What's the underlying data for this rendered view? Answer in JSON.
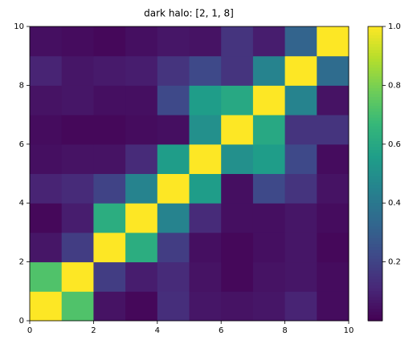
{
  "chart_data": {
    "type": "heatmap",
    "title": "dark halo: [2, 1, 8]",
    "z": [
      [
        1.0,
        0.72,
        0.05,
        0.02,
        0.13,
        0.06,
        0.05,
        0.06,
        0.1,
        0.03
      ],
      [
        0.72,
        1.0,
        0.18,
        0.08,
        0.12,
        0.05,
        0.02,
        0.05,
        0.06,
        0.03
      ],
      [
        0.06,
        0.18,
        1.0,
        0.62,
        0.18,
        0.04,
        0.02,
        0.04,
        0.06,
        0.02
      ],
      [
        0.02,
        0.08,
        0.62,
        1.0,
        0.45,
        0.12,
        0.04,
        0.04,
        0.06,
        0.03
      ],
      [
        0.1,
        0.12,
        0.2,
        0.45,
        1.0,
        0.55,
        0.04,
        0.22,
        0.15,
        0.05
      ],
      [
        0.04,
        0.05,
        0.05,
        0.12,
        0.55,
        1.0,
        0.5,
        0.55,
        0.22,
        0.03
      ],
      [
        0.03,
        0.02,
        0.02,
        0.03,
        0.04,
        0.5,
        1.0,
        0.6,
        0.15,
        0.15
      ],
      [
        0.05,
        0.06,
        0.04,
        0.04,
        0.22,
        0.55,
        0.6,
        1.0,
        0.45,
        0.05
      ],
      [
        0.1,
        0.06,
        0.07,
        0.08,
        0.15,
        0.22,
        0.15,
        0.45,
        1.0,
        0.35
      ],
      [
        0.04,
        0.03,
        0.02,
        0.04,
        0.06,
        0.05,
        0.15,
        0.08,
        0.32,
        1.0
      ]
    ],
    "xlim": [
      0,
      10
    ],
    "ylim": [
      0,
      10
    ],
    "xticks": [
      0,
      2,
      4,
      6,
      8,
      10
    ],
    "yticks": [
      0,
      2,
      4,
      6,
      8,
      10
    ],
    "colormap": "viridis",
    "clim": [
      0,
      1
    ],
    "cticks": [
      0.2,
      0.4,
      0.6,
      0.8,
      {
        "value": 1,
        "label": "1.0"
      }
    ]
  }
}
